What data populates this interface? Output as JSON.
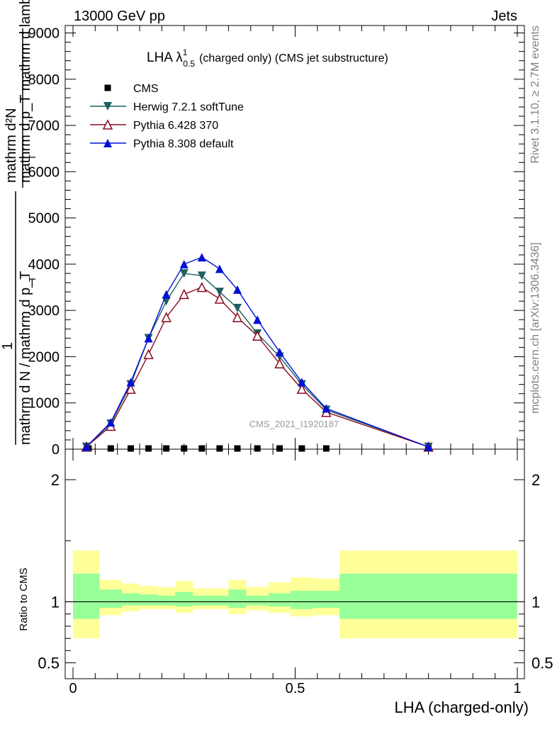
{
  "header": {
    "left": "13000 GeV pp",
    "right": "Jets",
    "side_top": "Rivet 3.1.10, ≥ 2.7M events",
    "side_bottom": "mcplots.cern.ch [arXiv:1306.3436]"
  },
  "chart_data": [
    {
      "type": "line",
      "title_main": "LHA λ",
      "title_sup": "1",
      "title_sub": "0.5",
      "title_rest": "(charged only) (CMS jet substructure)",
      "watermark": "CMS_2021_I1920187",
      "ylabel_top": "mathrm d²N",
      "ylabel_bottom": "mathrm d p_T mathrm d lambda",
      "ylabel_one": "1",
      "ylabel_denom": "mathrm d N / mathrm d p_T",
      "ylabel_t_sub": "T",
      "ylim": [
        0,
        9100
      ],
      "xlim": [
        0,
        1
      ],
      "yticks": [
        {
          "v": 0,
          "label": "0"
        },
        {
          "v": 1000,
          "label": "1000"
        },
        {
          "v": 2000,
          "label": "2000"
        },
        {
          "v": 3000,
          "label": "3000"
        },
        {
          "v": 4000,
          "label": "4000"
        },
        {
          "v": 5000,
          "label": "5000"
        },
        {
          "v": 6000,
          "label": "6000"
        },
        {
          "v": 7000,
          "label": "7000"
        },
        {
          "v": 8000,
          "label": "8000"
        },
        {
          "v": 9000,
          "label": "9000"
        }
      ],
      "series": [
        {
          "name": "CMS",
          "color": "#000000",
          "marker": "square",
          "x": [
            0.035,
            0.085,
            0.13,
            0.17,
            0.21,
            0.25,
            0.29,
            0.33,
            0.37,
            0.415,
            0.465,
            0.515,
            0.57,
            0.8
          ],
          "y": [
            5,
            5,
            5,
            5,
            5,
            5,
            5,
            5,
            5,
            5,
            5,
            5,
            5,
            5
          ]
        },
        {
          "name": "Herwig 7.2.1 softTune",
          "color": "#1f5f5f",
          "marker": "triangle-down",
          "x": [
            0.03,
            0.085,
            0.13,
            0.17,
            0.21,
            0.25,
            0.29,
            0.33,
            0.37,
            0.415,
            0.465,
            0.515,
            0.57,
            0.8
          ],
          "y": [
            50,
            550,
            1400,
            2400,
            3200,
            3800,
            3750,
            3400,
            3050,
            2500,
            2000,
            1400,
            850,
            50
          ]
        },
        {
          "name": "Pythia 6.428 370",
          "color": "#8b0a1e",
          "marker": "triangle-up-open",
          "x": [
            0.03,
            0.085,
            0.13,
            0.17,
            0.21,
            0.25,
            0.29,
            0.33,
            0.37,
            0.415,
            0.465,
            0.515,
            0.57,
            0.8
          ],
          "y": [
            50,
            500,
            1300,
            2050,
            2850,
            3350,
            3500,
            3250,
            2850,
            2450,
            1850,
            1300,
            800,
            50
          ]
        },
        {
          "name": "Pythia 8.308 default",
          "color": "#0010d6",
          "marker": "triangle-up",
          "x": [
            0.03,
            0.085,
            0.13,
            0.17,
            0.21,
            0.25,
            0.29,
            0.33,
            0.37,
            0.415,
            0.465,
            0.515,
            0.57,
            0.8
          ],
          "y": [
            50,
            580,
            1450,
            2400,
            3350,
            4000,
            4150,
            3900,
            3450,
            2800,
            2100,
            1450,
            880,
            50
          ]
        }
      ]
    },
    {
      "type": "area",
      "ylabel": "Ratio to CMS",
      "xlabel": "LHA (charged-only)",
      "xlim": [
        0,
        1
      ],
      "ylim": [
        0.37,
        2.25
      ],
      "yticks": [
        {
          "v": 0.5,
          "label": "0.5"
        },
        {
          "v": 1,
          "label": "1"
        },
        {
          "v": 2,
          "label": "2"
        }
      ],
      "xticks": [
        {
          "v": 0,
          "label": "0"
        },
        {
          "v": 0.5,
          "label": "0.5"
        },
        {
          "v": 1,
          "label": "1"
        }
      ],
      "reference_line": 1,
      "bands": [
        {
          "x0": 0.0,
          "x1": 0.06,
          "y_lo": 0.7,
          "y_hi": 1.42,
          "g_lo": 0.86,
          "g_hi": 1.23
        },
        {
          "x0": 0.06,
          "x1": 0.11,
          "y_lo": 0.89,
          "y_hi": 1.18,
          "g_lo": 0.95,
          "g_hi": 1.1
        },
        {
          "x0": 0.11,
          "x1": 0.15,
          "y_lo": 0.92,
          "y_hi": 1.15,
          "g_lo": 0.97,
          "g_hi": 1.07
        },
        {
          "x0": 0.15,
          "x1": 0.19,
          "y_lo": 0.94,
          "y_hi": 1.13,
          "g_lo": 0.97,
          "g_hi": 1.06
        },
        {
          "x0": 0.19,
          "x1": 0.23,
          "y_lo": 0.94,
          "y_hi": 1.12,
          "g_lo": 0.97,
          "g_hi": 1.05
        },
        {
          "x0": 0.23,
          "x1": 0.27,
          "y_lo": 0.91,
          "y_hi": 1.17,
          "g_lo": 0.96,
          "g_hi": 1.08
        },
        {
          "x0": 0.27,
          "x1": 0.35,
          "y_lo": 0.94,
          "y_hi": 1.11,
          "g_lo": 0.97,
          "g_hi": 1.05
        },
        {
          "x0": 0.35,
          "x1": 0.39,
          "y_lo": 0.9,
          "y_hi": 1.18,
          "g_lo": 0.95,
          "g_hi": 1.1
        },
        {
          "x0": 0.39,
          "x1": 0.44,
          "y_lo": 0.93,
          "y_hi": 1.12,
          "g_lo": 0.97,
          "g_hi": 1.05
        },
        {
          "x0": 0.44,
          "x1": 0.49,
          "y_lo": 0.91,
          "y_hi": 1.16,
          "g_lo": 0.96,
          "g_hi": 1.07
        },
        {
          "x0": 0.49,
          "x1": 0.54,
          "y_lo": 0.88,
          "y_hi": 1.2,
          "g_lo": 0.94,
          "g_hi": 1.09
        },
        {
          "x0": 0.54,
          "x1": 0.6,
          "y_lo": 0.89,
          "y_hi": 1.19,
          "g_lo": 0.95,
          "g_hi": 1.09
        },
        {
          "x0": 0.6,
          "x1": 1.0,
          "y_lo": 0.7,
          "y_hi": 1.42,
          "g_lo": 0.86,
          "g_hi": 1.23
        }
      ],
      "band_colors": {
        "outer": "#ffff99",
        "inner": "#99ff99"
      }
    }
  ]
}
